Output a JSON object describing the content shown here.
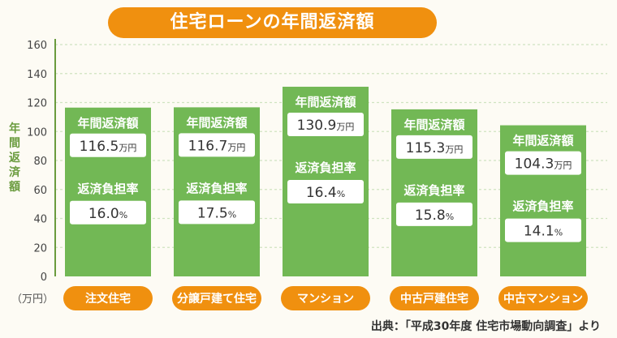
{
  "chart_data": {
    "type": "bar",
    "title": "住宅ローンの年間返済額",
    "ylabel": "年間返済額",
    "unit_label": "（万円）",
    "ylim": [
      0,
      160
    ],
    "yticks": [
      0,
      20,
      40,
      60,
      80,
      100,
      120,
      140,
      160
    ],
    "categories": [
      "注文住宅",
      "分譲戸建て住宅",
      "マンション",
      "中古戸建住宅",
      "中古マンション"
    ],
    "series": [
      {
        "name": "年間返済額",
        "values": [
          116.5,
          116.7,
          130.9,
          115.3,
          104.3
        ],
        "display_values": [
          "116.5",
          "116.7",
          "130.9",
          "115.3",
          "104.3"
        ],
        "unit": "万円"
      },
      {
        "name": "返済負担率",
        "values": [
          16.0,
          17.5,
          16.4,
          15.8,
          14.1
        ],
        "display_values": [
          "16.0",
          "17.5",
          "16.4",
          "15.8",
          "14.1"
        ],
        "unit": "%"
      }
    ],
    "source": "出典：「平成30年度 住宅市場動向調査」より",
    "grid": true,
    "colors": {
      "bar": "#72b855",
      "accent": "#f0900f",
      "grid": "#cfe3c0",
      "axis": "#6a9b3e"
    }
  }
}
